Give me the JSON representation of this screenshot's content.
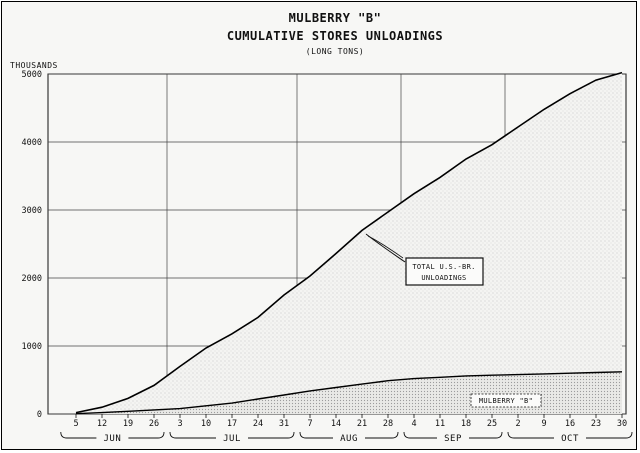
{
  "chart_data": {
    "type": "area",
    "title": "MULBERRY \"B\"",
    "subtitle": "CUMULATIVE STORES UNLOADINGS",
    "unit_note": "(LONG TONS)",
    "ylabel": "THOUSANDS",
    "ylim": [
      0,
      5000
    ],
    "yticks": [
      "0",
      "1000",
      "2000",
      "3000",
      "4000",
      "5000"
    ],
    "xticks": [
      "5",
      "12",
      "19",
      "26",
      "3",
      "10",
      "17",
      "24",
      "31",
      "7",
      "14",
      "21",
      "28",
      "4",
      "11",
      "18",
      "25",
      "2",
      "9",
      "16",
      "23",
      "30"
    ],
    "months": [
      "JUN",
      "JUL",
      "AUG",
      "SEP",
      "OCT"
    ],
    "series": [
      {
        "name": "TOTAL U.S.-BR. UNLOADINGS",
        "values": [
          20,
          100,
          230,
          420,
          700,
          970,
          1180,
          1420,
          1750,
          2030,
          2360,
          2700,
          2970,
          3240,
          3480,
          3750,
          3960,
          4220,
          4480,
          4710,
          4910,
          5020
        ]
      },
      {
        "name": "MULBERRY \"B\"",
        "values": [
          5,
          20,
          40,
          60,
          80,
          120,
          160,
          220,
          280,
          340,
          390,
          440,
          490,
          520,
          540,
          560,
          570,
          580,
          590,
          600,
          610,
          620
        ]
      }
    ],
    "annotations": [
      {
        "text_lines": [
          "TOTAL U.S.-BR.",
          "UNLOADINGS"
        ]
      },
      {
        "text_lines": [
          "MULBERRY \"B\""
        ]
      }
    ],
    "grid": true
  }
}
